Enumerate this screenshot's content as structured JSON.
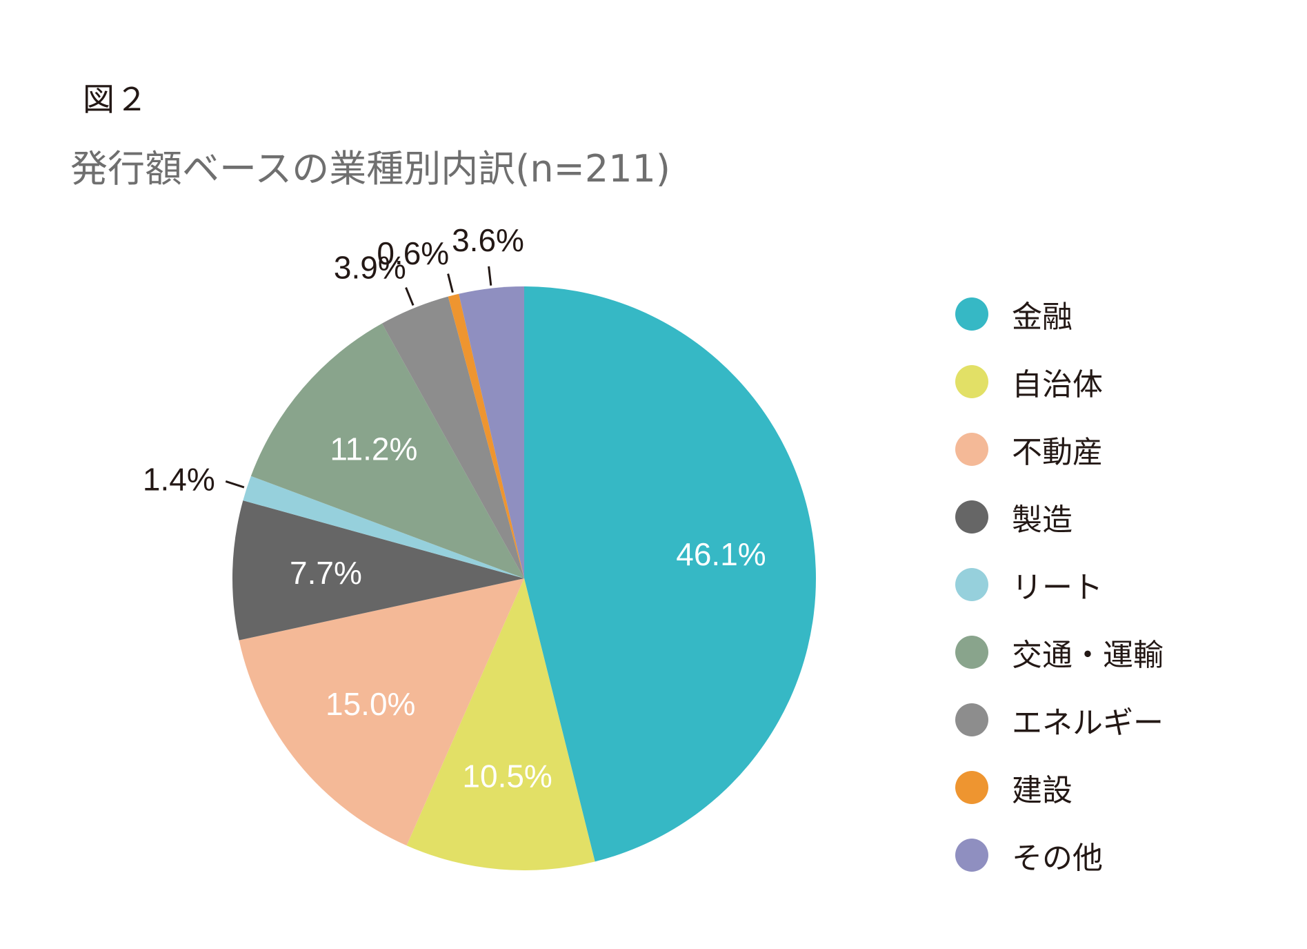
{
  "figure_label": "図２",
  "chart_data": {
    "type": "pie",
    "title": "発行額ベースの業種別内訳(n=211)",
    "start_angle_deg": 0,
    "direction": "clockwise",
    "legend_position": "right",
    "slices": [
      {
        "name": "金融",
        "value": 46.1,
        "label": "46.1%",
        "color": "#36b8c5",
        "label_style": "inside"
      },
      {
        "name": "自治体",
        "value": 10.5,
        "label": "10.5%",
        "color": "#e2e066",
        "label_style": "inside"
      },
      {
        "name": "不動産",
        "value": 15.0,
        "label": "15.0%",
        "color": "#f4b997",
        "label_style": "inside"
      },
      {
        "name": "製造",
        "value": 7.7,
        "label": "7.7%",
        "color": "#666666",
        "label_style": "inside"
      },
      {
        "name": "リート",
        "value": 1.4,
        "label": "1.4%",
        "color": "#96d0dc",
        "label_style": "outside"
      },
      {
        "name": "交通・運輸",
        "value": 11.2,
        "label": "11.2%",
        "color": "#89a48c",
        "label_style": "inside"
      },
      {
        "name": "エネルギー",
        "value": 3.9,
        "label": "3.9%",
        "color": "#8d8d8d",
        "label_style": "outside"
      },
      {
        "name": "建設",
        "value": 0.6,
        "label": "0.6%",
        "color": "#ee9530",
        "label_style": "outside"
      },
      {
        "name": "その他",
        "value": 3.6,
        "label": "3.6%",
        "color": "#8f8fc0",
        "label_style": "outside"
      }
    ]
  }
}
